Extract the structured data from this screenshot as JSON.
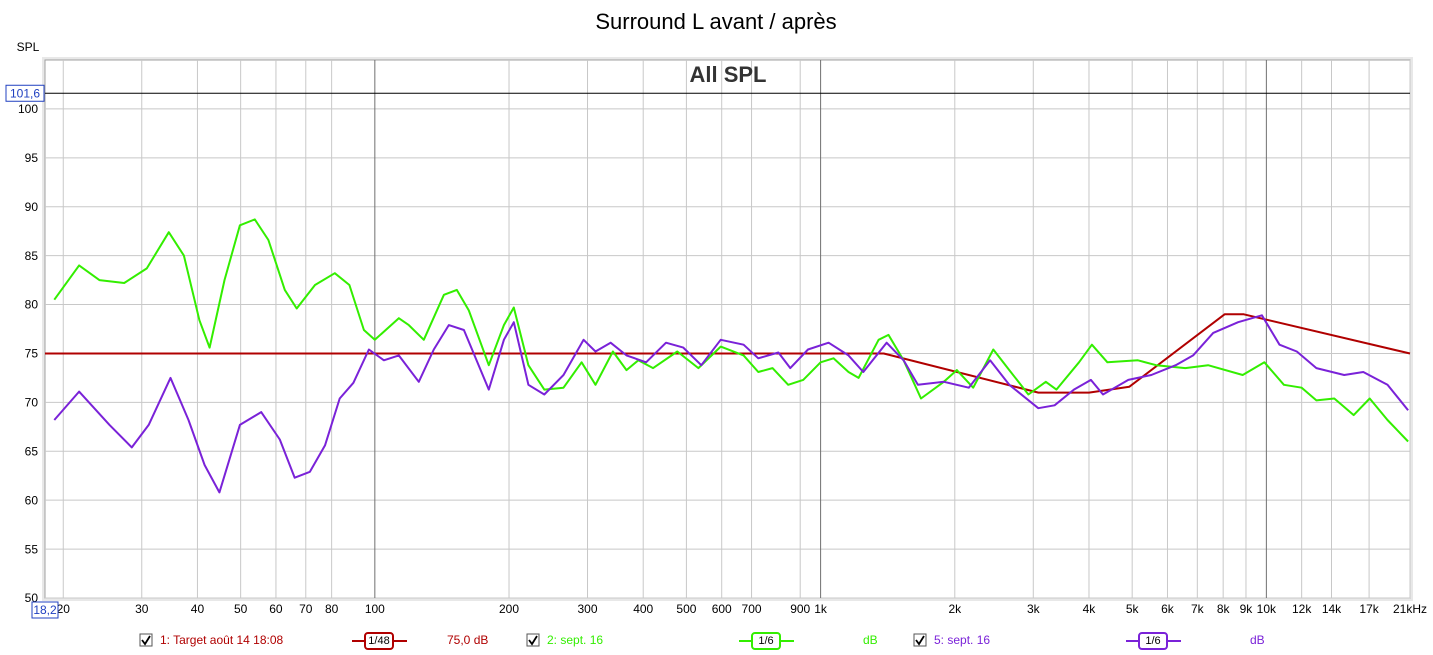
{
  "chart_data": {
    "type": "line",
    "title": "Surround L avant / après",
    "inner_title": "All SPL",
    "ylabel": "SPL",
    "log_x": true,
    "grid": true,
    "xlim": [
      18.2,
      21000
    ],
    "ylim": [
      50,
      105
    ],
    "xticks": [
      20,
      30,
      40,
      50,
      60,
      70,
      80,
      100,
      200,
      300,
      400,
      500,
      600,
      700,
      900,
      {
        "value": 1000,
        "label": "1k"
      },
      {
        "value": 2000,
        "label": "2k"
      },
      {
        "value": 3000,
        "label": "3k"
      },
      {
        "value": 4000,
        "label": "4k"
      },
      {
        "value": 5000,
        "label": "5k"
      },
      {
        "value": 6000,
        "label": "6k"
      },
      {
        "value": 7000,
        "label": "7k"
      },
      {
        "value": 8000,
        "label": "8k"
      },
      {
        "value": 9000,
        "label": "9k"
      },
      {
        "value": 10000,
        "label": "10k"
      },
      {
        "value": 12000,
        "label": "12k"
      },
      {
        "value": 14000,
        "label": "14k"
      },
      {
        "value": 17000,
        "label": "17k"
      },
      {
        "value": 21000,
        "label": "21kHz"
      }
    ],
    "yticks": [
      50,
      55,
      60,
      65,
      70,
      75,
      80,
      85,
      90,
      95,
      100
    ],
    "x_start_marker": {
      "value": 18.2,
      "label": "18,2"
    },
    "y_cursor": {
      "value": 101.6,
      "label": "101,6"
    },
    "series": [
      {
        "name": "1: Target août 14 18:08",
        "color": "#b00000",
        "smoothing": "1/48",
        "legend_value": "75,0 dB",
        "x": [
          18.2,
          1385,
          3080,
          4000,
          4930,
          8060,
          8900,
          21000
        ],
        "values": [
          75,
          75,
          71,
          71,
          71.6,
          79,
          79,
          75
        ]
      },
      {
        "name": "2: sept. 16",
        "color": "#33ee00",
        "smoothing": "1/6",
        "legend_value": "dB",
        "x": [
          19.1,
          21.7,
          24.1,
          27.4,
          30.8,
          34.5,
          37.3,
          40.4,
          42.6,
          46,
          49.8,
          53.8,
          57.7,
          62.8,
          66.8,
          73.4,
          81.3,
          87.7,
          94.5,
          100,
          113.2,
          119.2,
          128.8,
          142.9,
          152.7,
          162.5,
          180.2,
          194.8,
          205,
          221,
          240,
          265,
          291,
          312.6,
          342,
          367,
          390,
          421,
          477,
          532,
          597,
          672,
          725,
          780,
          846,
          914,
          1000,
          1069,
          1155,
          1217,
          1349,
          1420,
          1535,
          1680,
          1890,
          2021,
          2200,
          2440,
          2650,
          2925,
          3200,
          3380,
          3800,
          4060,
          4400,
          5150,
          5660,
          6580,
          7400,
          8850,
          9900,
          10950,
          12000,
          12950,
          14200,
          15700,
          17050,
          18700,
          20800
        ],
        "values": [
          80.5,
          84.0,
          82.5,
          82.2,
          83.7,
          87.4,
          85,
          78.4,
          75.6,
          82.5,
          88.1,
          88.7,
          86.6,
          81.5,
          79.6,
          82.0,
          83.2,
          82,
          77.4,
          76.4,
          78.6,
          77.9,
          76.4,
          81,
          81.5,
          79.4,
          73.8,
          77.9,
          79.7,
          73.8,
          71.3,
          71.5,
          74.1,
          71.8,
          75.2,
          73.3,
          74.3,
          73.5,
          75.2,
          73.5,
          75.7,
          74.8,
          73.1,
          73.5,
          71.8,
          72.3,
          74.1,
          74.5,
          73.1,
          72.5,
          76.4,
          76.9,
          74.3,
          70.4,
          72.1,
          73.3,
          71.5,
          75.4,
          73.3,
          70.8,
          72.1,
          71.3,
          74.1,
          75.9,
          74.1,
          74.3,
          73.8,
          73.5,
          73.8,
          72.8,
          74.1,
          71.8,
          71.5,
          70.2,
          70.4,
          68.7,
          70.4,
          68.2,
          66
        ]
      },
      {
        "name": "5: sept. 16",
        "color": "#7a22d8",
        "smoothing": "1/6",
        "legend_value": "dB",
        "x": [
          19.1,
          21.7,
          25.4,
          28.5,
          31.1,
          34.8,
          38.2,
          41.5,
          44.8,
          49.8,
          55.6,
          61.2,
          66.1,
          71.5,
          77.3,
          83.4,
          89.5,
          97,
          104.8,
          113.2,
          125.5,
          135.6,
          146.5,
          158.4,
          180.2,
          194.8,
          205,
          221,
          240,
          265,
          294,
          312.6,
          338,
          367,
          406,
          450,
          492,
          540,
          597,
          672,
          725,
          804,
          855,
          937,
          1042,
          1155,
          1247,
          1406,
          1535,
          1653,
          1890,
          2150,
          2400,
          2650,
          3078,
          3350,
          3700,
          4040,
          4300,
          4900,
          5520,
          6260,
          6850,
          7600,
          8640,
          9770,
          10700,
          11700,
          12950,
          14950,
          16500,
          18700,
          20800
        ],
        "values": [
          68.2,
          71.1,
          67.7,
          65.4,
          67.7,
          72.5,
          68.2,
          63.6,
          60.8,
          67.7,
          69,
          66.2,
          62.3,
          62.9,
          65.6,
          70.4,
          72,
          75.4,
          74.3,
          74.8,
          72.1,
          75.4,
          77.9,
          77.4,
          71.3,
          76.4,
          78.2,
          71.8,
          70.8,
          72.8,
          76.4,
          75.2,
          76.1,
          74.8,
          74.1,
          76.1,
          75.6,
          73.8,
          76.4,
          75.9,
          74.5,
          75.1,
          73.5,
          75.4,
          76.1,
          74.8,
          73.1,
          76.1,
          74.3,
          71.8,
          72.1,
          71.5,
          74.3,
          71.8,
          69.4,
          69.7,
          71.3,
          72.3,
          70.8,
          72.3,
          72.8,
          73.8,
          74.8,
          77.1,
          78.2,
          78.9,
          75.9,
          75.2,
          73.5,
          72.8,
          73.1,
          71.8,
          69.2
        ]
      }
    ]
  }
}
